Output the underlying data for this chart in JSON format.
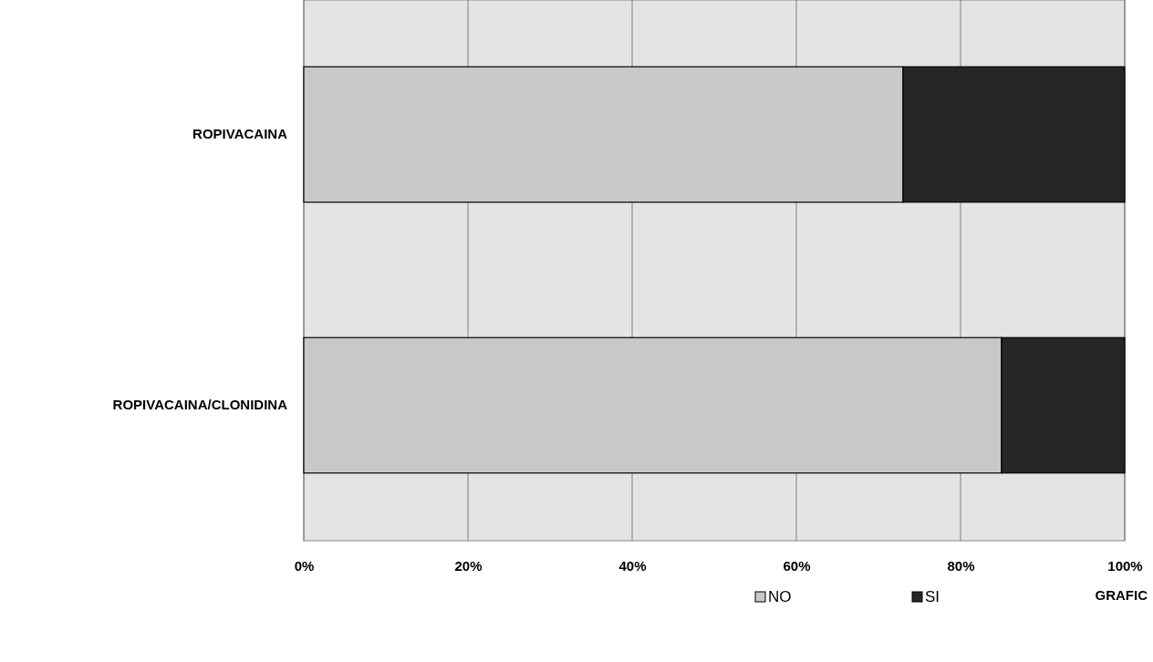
{
  "chart_data": {
    "type": "bar",
    "orientation": "horizontal",
    "stacked": true,
    "categories": [
      "ROPIVACAINA",
      "ROPIVACAINA/CLONIDINA"
    ],
    "series": [
      {
        "name": "NO",
        "color": "#c8c8c8",
        "values": [
          73,
          85
        ]
      },
      {
        "name": "SI",
        "color": "#262626",
        "values": [
          27,
          15
        ]
      }
    ],
    "xlim": [
      0,
      100
    ],
    "xticks": [
      {
        "value": 0,
        "label": "0%"
      },
      {
        "value": 20,
        "label": "20%"
      },
      {
        "value": 40,
        "label": "40%"
      },
      {
        "value": 60,
        "label": "60%"
      },
      {
        "value": 80,
        "label": "80%"
      },
      {
        "value": 100,
        "label": "100%"
      }
    ],
    "grid": "x",
    "legend": "bottom",
    "annotations": [
      "GRAFIC"
    ]
  }
}
